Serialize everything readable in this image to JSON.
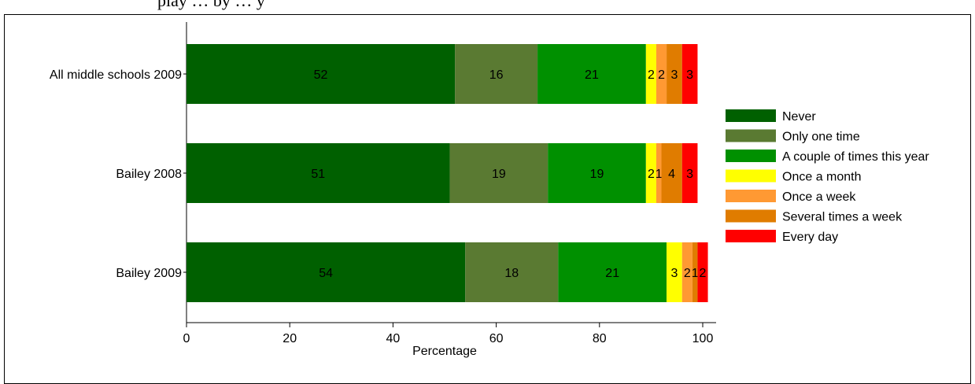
{
  "page_title_fragment": "play … by … y",
  "chart_data": {
    "type": "bar",
    "orientation": "horizontal",
    "stacked": true,
    "categories": [
      "All middle schools 2009",
      "Bailey 2008",
      "Bailey 2009"
    ],
    "series": [
      {
        "name": "Never",
        "color": "#006000",
        "values": [
          52,
          51,
          54
        ]
      },
      {
        "name": "Only one time",
        "color": "#5a7a32",
        "values": [
          16,
          19,
          18
        ]
      },
      {
        "name": "A couple of times this year",
        "color": "#009000",
        "values": [
          21,
          19,
          21
        ]
      },
      {
        "name": "Once a month",
        "color": "#ffff00",
        "values": [
          2,
          2,
          3
        ]
      },
      {
        "name": "Once a week",
        "color": "#ff9933",
        "values": [
          2,
          1,
          2
        ]
      },
      {
        "name": "Several times a week",
        "color": "#e07c00",
        "values": [
          3,
          4,
          1
        ]
      },
      {
        "name": "Every day",
        "color": "#ff0000",
        "values": [
          3,
          3,
          2
        ]
      }
    ],
    "bar_labels": [
      [
        "52",
        "16",
        "21",
        "2",
        "2",
        "3",
        "3"
      ],
      [
        "51",
        "19",
        "19",
        "2",
        "1",
        "4",
        "3"
      ],
      [
        "54",
        "18",
        "21",
        "3",
        "2",
        "1",
        "2"
      ]
    ],
    "xlabel": "Percentage",
    "ylabel": "",
    "xlim": [
      0,
      100
    ],
    "xticks": [
      0,
      20,
      40,
      60,
      80,
      100
    ],
    "xtick_labels": [
      "0",
      "20",
      "40",
      "60",
      "80",
      "100"
    ],
    "grid": false,
    "legend_position": "right"
  }
}
